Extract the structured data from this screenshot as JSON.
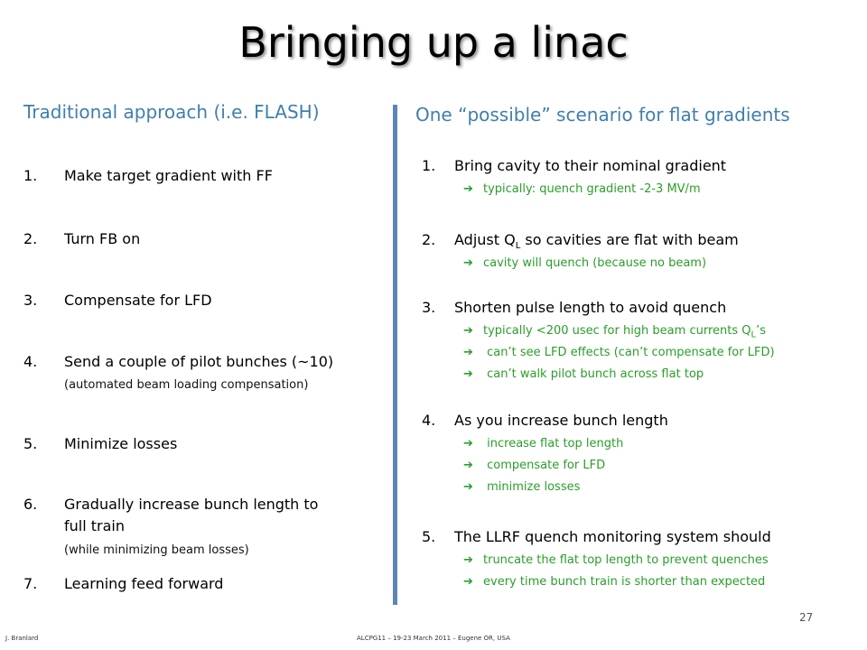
{
  "title": "Bringing up a linac",
  "left": {
    "heading": "Traditional approach (i.e. FLASH)",
    "items": [
      {
        "num": "1.",
        "text": "Make target gradient with FF"
      },
      {
        "num": "2.",
        "text": "Turn FB on"
      },
      {
        "num": "3.",
        "text": "Compensate for LFD"
      },
      {
        "num": "4.",
        "text": "Send a couple of pilot bunches (~10)",
        "note": "(automated beam loading compensation)"
      },
      {
        "num": "5.",
        "text": "Minimize losses"
      },
      {
        "num": "6.",
        "text": "Gradually increase bunch length to",
        "text2": "full train",
        "note": "(while minimizing beam losses)"
      },
      {
        "num": "7.",
        "text": "Learning feed forward"
      }
    ]
  },
  "right": {
    "heading": "One “possible” scenario for flat gradients",
    "arrow": "➔",
    "items": [
      {
        "num": "1.",
        "text": "Bring cavity to their nominal gradient",
        "subs": [
          "typically:  quench gradient -2-3 MV/m"
        ]
      },
      {
        "num": "2.",
        "text_pre": "Adjust Q",
        "text_sub": "L",
        "text_post": " so cavities are flat with beam",
        "subs": [
          "cavity will quench (because no beam)"
        ]
      },
      {
        "num": "3.",
        "text": "Shorten pulse length to avoid quench",
        "subs": [
          {
            "pre": "typically  <200 usec for high beam currents Q",
            "sub": "L",
            "post": "’s"
          },
          " can’t see LFD effects (can’t compensate for LFD)",
          " can’t walk pilot bunch across flat top"
        ]
      },
      {
        "num": "4.",
        "text": "As you increase bunch length",
        "subs": [
          " increase flat top length",
          " compensate for LFD",
          " minimize losses"
        ]
      },
      {
        "num": "5.",
        "text": "The LLRF quench monitoring system should",
        "subs": [
          "truncate the flat top length to prevent quenches",
          "every time bunch train is shorter than expected"
        ]
      }
    ]
  },
  "footer": {
    "author": "J. Branlard",
    "conference": "ALCPG11 – 19-23 March 2011 – Eugene OR, USA",
    "page": "27"
  },
  "colors": {
    "heading": "#3f7fad",
    "divider": "#5b87b5",
    "sub_text": "#2a9e2a"
  }
}
